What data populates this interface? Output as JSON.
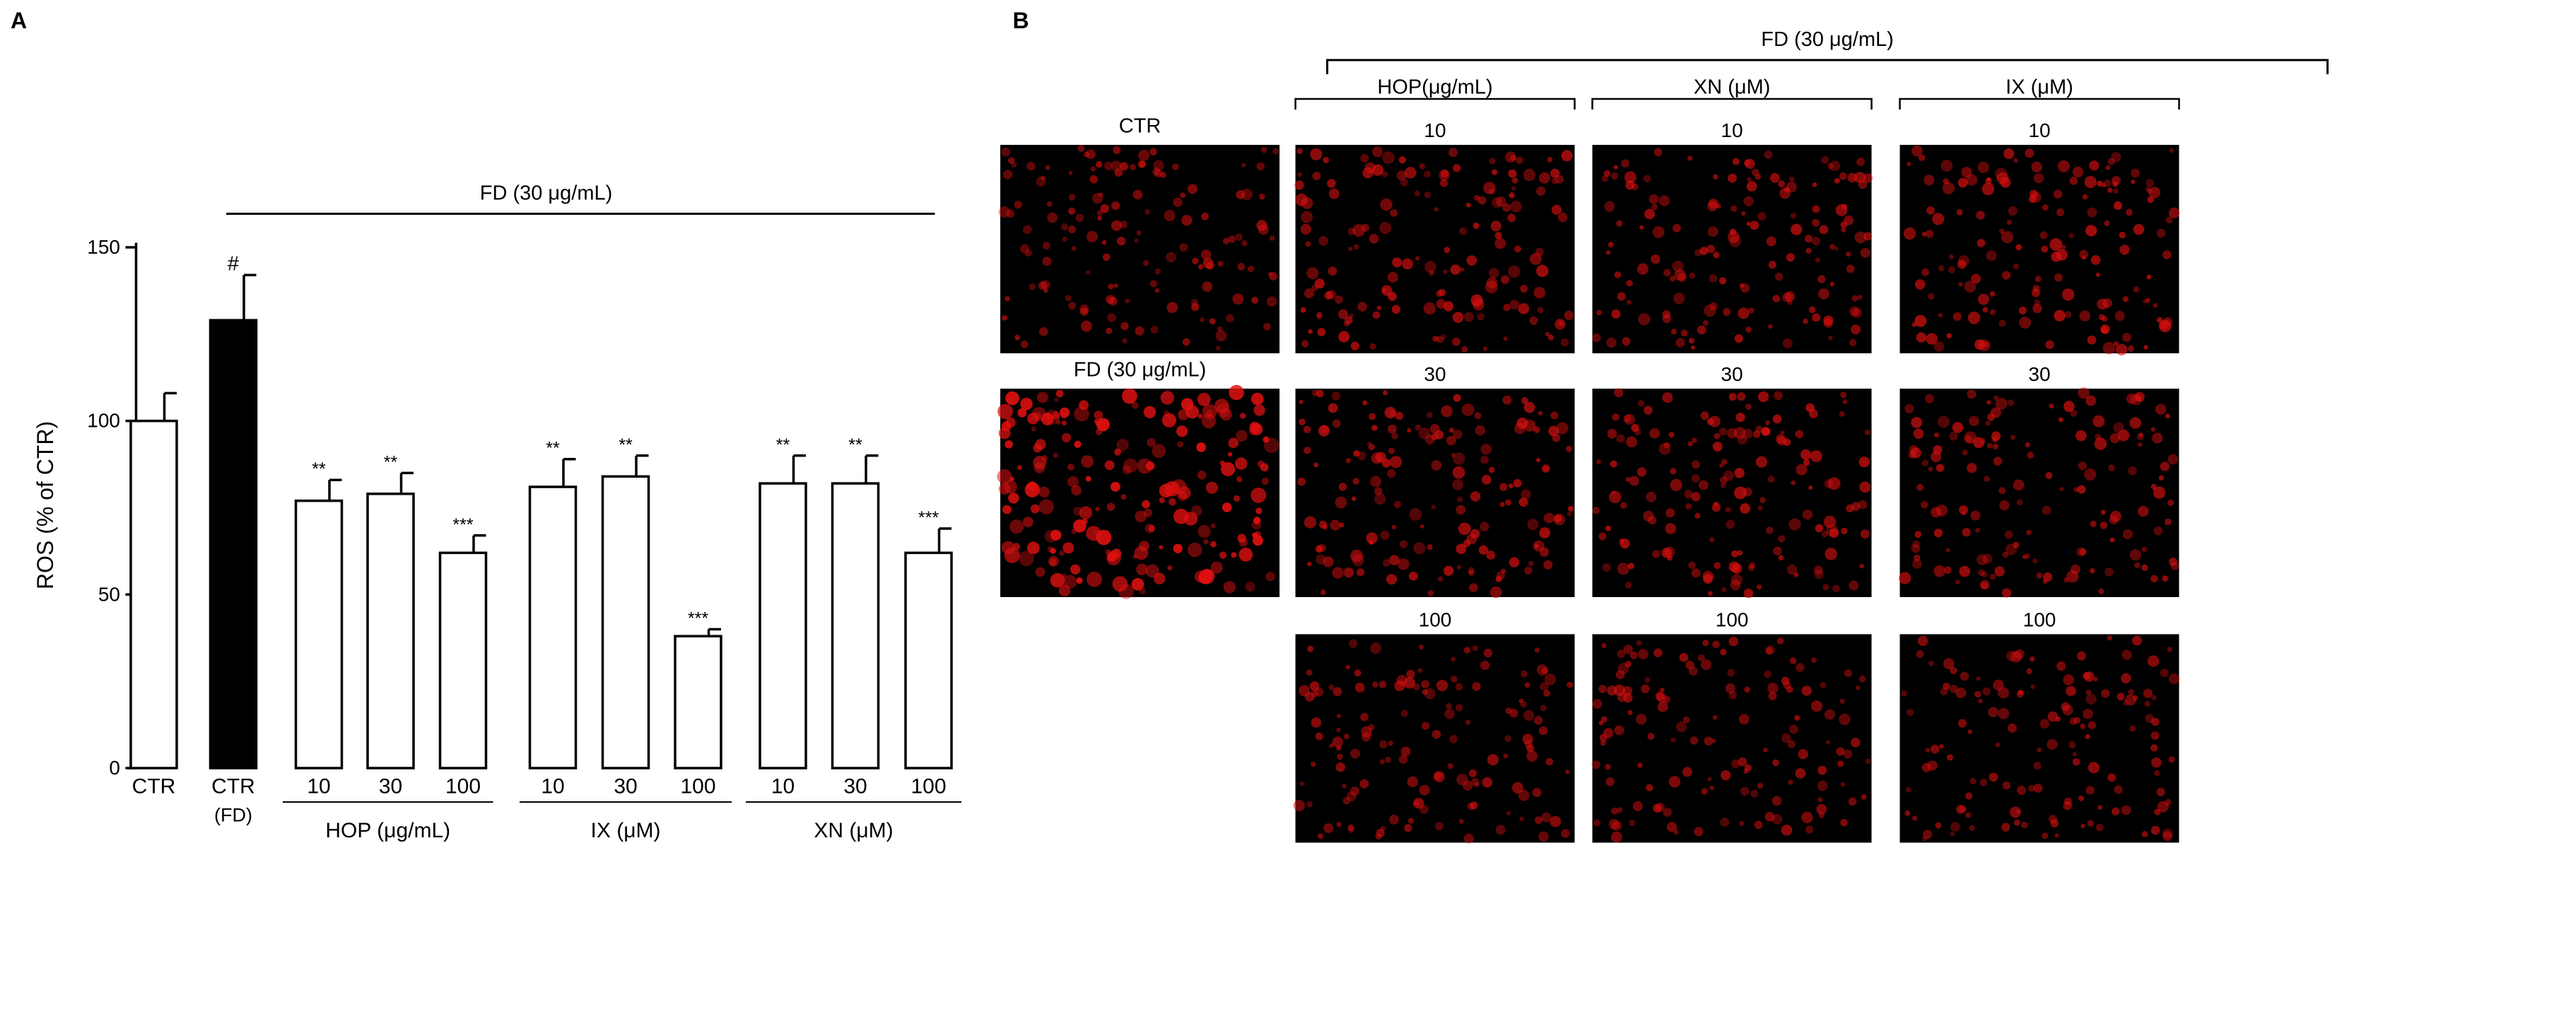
{
  "panels": {
    "a": "A",
    "b": "B"
  },
  "chart_data": {
    "type": "bar",
    "title": "",
    "ylabel": "ROS (% of CTR)",
    "ylim": [
      0,
      150
    ],
    "yticks": [
      0,
      50,
      100,
      150
    ],
    "treatment_label": "FD (30 μg/mL)",
    "categories": [
      "CTR",
      "CTR",
      "10",
      "30",
      "100",
      "10",
      "30",
      "100",
      "10",
      "30",
      "100"
    ],
    "category_sublabels": [
      "",
      "(FD)",
      "",
      "",
      "",
      "",
      "",
      "",
      "",
      "",
      ""
    ],
    "groups": [
      {
        "label": "HOP (μg/mL)",
        "categories": [
          "10",
          "30",
          "100"
        ]
      },
      {
        "label": "IX (μM)",
        "categories": [
          "10",
          "30",
          "100"
        ]
      },
      {
        "label": "XN (μM)",
        "categories": [
          "10",
          "30",
          "100"
        ]
      }
    ],
    "values": [
      100,
      129,
      77,
      79,
      62,
      81,
      84,
      38,
      82,
      82,
      62
    ],
    "errors": [
      8,
      13,
      6,
      6,
      5,
      8,
      6,
      2,
      8,
      8,
      7
    ],
    "significance": [
      "",
      "#",
      "**",
      "**",
      "***",
      "**",
      "**",
      "***",
      "**",
      "**",
      "***"
    ],
    "bar_colors": [
      "#ffffff",
      "#000000",
      "#ffffff",
      "#ffffff",
      "#ffffff",
      "#ffffff",
      "#ffffff",
      "#ffffff",
      "#ffffff",
      "#ffffff",
      "#ffffff"
    ],
    "grid": false
  },
  "micrographs": {
    "header": "FD (30 μg/mL)",
    "columns": [
      "HOP(μg/mL)",
      "XN (μM)",
      "IX (μM)"
    ],
    "control_labels": [
      "CTR",
      "FD (30 μg/mL)"
    ],
    "doses": [
      "10",
      "30",
      "100"
    ],
    "image_color": "#000000",
    "cell_color": "#e01010",
    "intensity": {
      "ctr": 0.45,
      "fd": 1.0,
      "grid": [
        [
          0.6,
          0.55,
          0.6
        ],
        [
          0.6,
          0.6,
          0.55
        ],
        [
          0.45,
          0.45,
          0.45
        ]
      ]
    }
  }
}
